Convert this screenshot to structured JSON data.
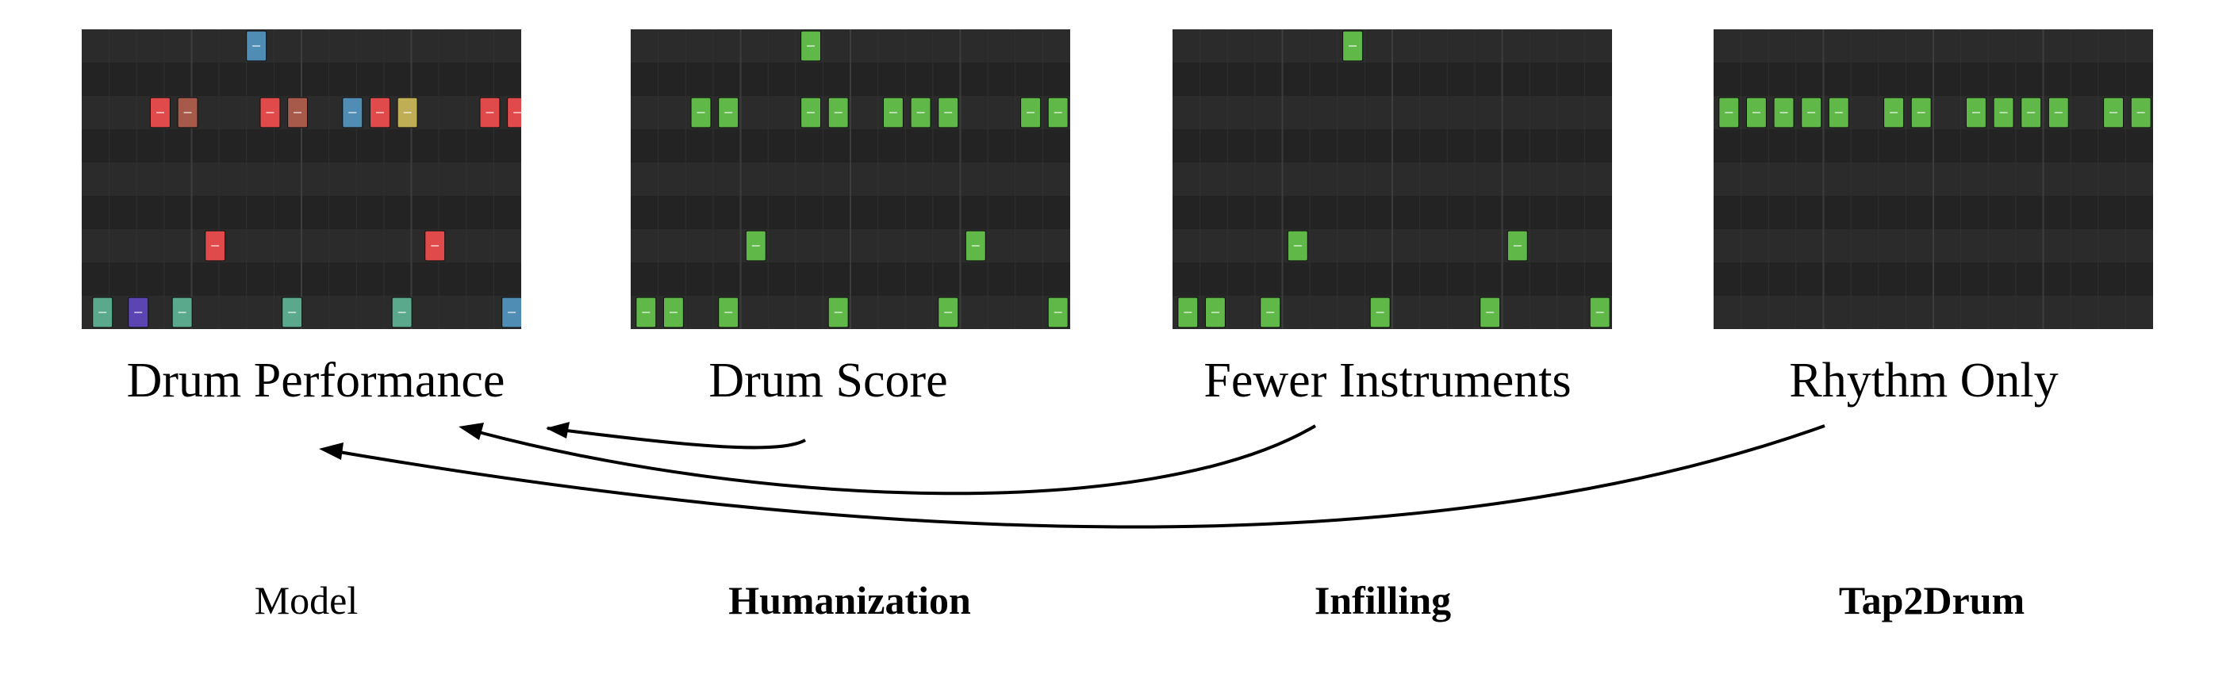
{
  "colors": {
    "green": "#5fb847",
    "red": "#e14a4a",
    "brown": "#a85a4a",
    "blue": "#4f8db5",
    "teal": "#5aa98c",
    "purple": "#5a45b3",
    "yellow": "#bfae56",
    "roll_bg": "#262626",
    "arrow": "#000000"
  },
  "panels": [
    {
      "caption": "Drum Performance",
      "notes": [
        {
          "step": 5.8,
          "row": 0,
          "color": "blue"
        },
        {
          "step": 2.3,
          "row": 2,
          "color": "red"
        },
        {
          "step": 3.3,
          "row": 2,
          "color": "brown"
        },
        {
          "step": 6.3,
          "row": 2,
          "color": "red"
        },
        {
          "step": 7.3,
          "row": 2,
          "color": "brown"
        },
        {
          "step": 9.3,
          "row": 2,
          "color": "blue"
        },
        {
          "step": 10.3,
          "row": 2,
          "color": "red"
        },
        {
          "step": 11.3,
          "row": 2,
          "color": "yellow"
        },
        {
          "step": 14.3,
          "row": 2,
          "color": "red"
        },
        {
          "step": 15.3,
          "row": 2,
          "color": "red"
        },
        {
          "step": 4.3,
          "row": 6,
          "color": "red"
        },
        {
          "step": 12.3,
          "row": 6,
          "color": "red"
        },
        {
          "step": 0.2,
          "row": 8,
          "color": "teal"
        },
        {
          "step": 1.5,
          "row": 8,
          "color": "purple"
        },
        {
          "step": 3.1,
          "row": 8,
          "color": "teal"
        },
        {
          "step": 7.1,
          "row": 8,
          "color": "teal"
        },
        {
          "step": 11.1,
          "row": 8,
          "color": "teal"
        },
        {
          "step": 15.1,
          "row": 8,
          "color": "blue"
        }
      ]
    },
    {
      "caption": "Drum Score",
      "notes": [
        {
          "step": 6,
          "row": 0,
          "color": "green"
        },
        {
          "step": 2,
          "row": 2,
          "color": "green"
        },
        {
          "step": 3,
          "row": 2,
          "color": "green"
        },
        {
          "step": 6,
          "row": 2,
          "color": "green"
        },
        {
          "step": 7,
          "row": 2,
          "color": "green"
        },
        {
          "step": 9,
          "row": 2,
          "color": "green"
        },
        {
          "step": 10,
          "row": 2,
          "color": "green"
        },
        {
          "step": 11,
          "row": 2,
          "color": "green"
        },
        {
          "step": 14,
          "row": 2,
          "color": "green"
        },
        {
          "step": 15,
          "row": 2,
          "color": "green"
        },
        {
          "step": 4,
          "row": 6,
          "color": "green"
        },
        {
          "step": 12,
          "row": 6,
          "color": "green"
        },
        {
          "step": 0,
          "row": 8,
          "color": "green"
        },
        {
          "step": 1,
          "row": 8,
          "color": "green"
        },
        {
          "step": 3,
          "row": 8,
          "color": "green"
        },
        {
          "step": 7,
          "row": 8,
          "color": "green"
        },
        {
          "step": 11,
          "row": 8,
          "color": "green"
        },
        {
          "step": 15,
          "row": 8,
          "color": "green"
        }
      ]
    },
    {
      "caption": "Fewer Instruments",
      "notes": [
        {
          "step": 6,
          "row": 0,
          "color": "green"
        },
        {
          "step": 4,
          "row": 6,
          "color": "green"
        },
        {
          "step": 12,
          "row": 6,
          "color": "green"
        },
        {
          "step": 0,
          "row": 8,
          "color": "green"
        },
        {
          "step": 1,
          "row": 8,
          "color": "green"
        },
        {
          "step": 3,
          "row": 8,
          "color": "green"
        },
        {
          "step": 7,
          "row": 8,
          "color": "green"
        },
        {
          "step": 11,
          "row": 8,
          "color": "green"
        },
        {
          "step": 15,
          "row": 8,
          "color": "green"
        }
      ]
    },
    {
      "caption": "Rhythm Only",
      "notes": [
        {
          "step": 0,
          "row": 2,
          "color": "green"
        },
        {
          "step": 1,
          "row": 2,
          "color": "green"
        },
        {
          "step": 2,
          "row": 2,
          "color": "green"
        },
        {
          "step": 3,
          "row": 2,
          "color": "green"
        },
        {
          "step": 4,
          "row": 2,
          "color": "green"
        },
        {
          "step": 6,
          "row": 2,
          "color": "green"
        },
        {
          "step": 7,
          "row": 2,
          "color": "green"
        },
        {
          "step": 9,
          "row": 2,
          "color": "green"
        },
        {
          "step": 10,
          "row": 2,
          "color": "green"
        },
        {
          "step": 11,
          "row": 2,
          "color": "green"
        },
        {
          "step": 12,
          "row": 2,
          "color": "green"
        },
        {
          "step": 14,
          "row": 2,
          "color": "green"
        },
        {
          "step": 15,
          "row": 2,
          "color": "green"
        }
      ]
    }
  ],
  "tasks": {
    "model": "Model",
    "humanization": "Humanization",
    "infilling": "Infilling",
    "tap2drum": "Tap2Drum"
  }
}
